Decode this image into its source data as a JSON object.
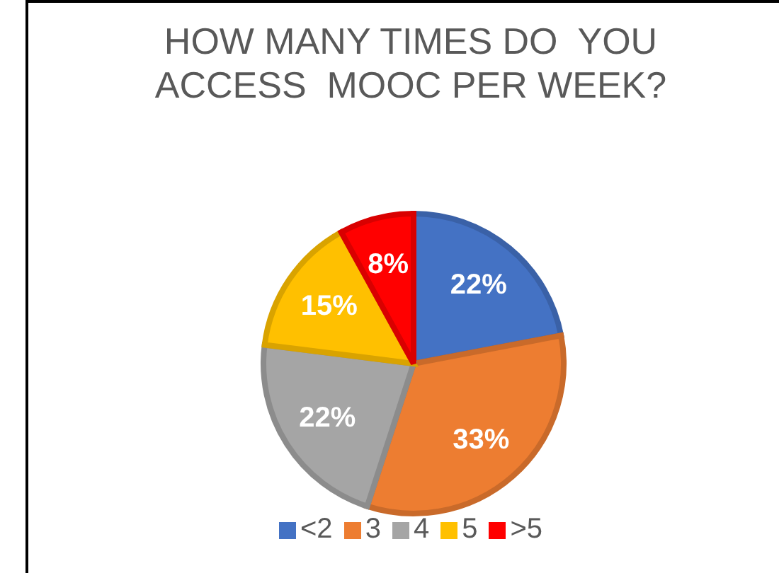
{
  "chart_data": {
    "type": "pie",
    "title": "HOW MANY TIMES DO  YOU ACCESS  MOOC PER WEEK?",
    "categories": [
      "<2",
      "3",
      "4",
      "5",
      ">5"
    ],
    "values": [
      22,
      33,
      22,
      15,
      8
    ],
    "colors": [
      "#4472c4",
      "#ed7d31",
      "#a5a5a5",
      "#ffc000",
      "#ff0000"
    ],
    "value_labels": [
      "22%",
      "33%",
      "22%",
      "15%",
      "8%"
    ],
    "legend": "bottom"
  }
}
